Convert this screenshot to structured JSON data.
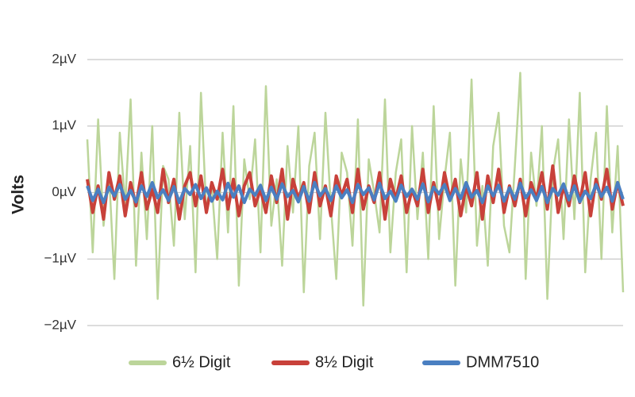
{
  "chart_data": {
    "type": "line",
    "y_label": "Volts",
    "ylim": [
      -2,
      2
    ],
    "yticks": [
      {
        "value": 2,
        "label": "2µV"
      },
      {
        "value": 1,
        "label": "1µV"
      },
      {
        "value": 0,
        "label": "0µV"
      },
      {
        "value": -1,
        "label": "−1µV"
      },
      {
        "value": -2,
        "label": "−2µV"
      }
    ],
    "grid": true,
    "legend": "bottom",
    "series": [
      {
        "name": "6½ Digit",
        "color": "#bcd59a",
        "values": [
          0.8,
          -0.9,
          1.1,
          -0.5,
          0.3,
          -1.3,
          0.9,
          -0.2,
          1.4,
          -1.1,
          0.6,
          -0.7,
          1.0,
          -1.6,
          0.4,
          0.2,
          -0.8,
          1.2,
          -0.4,
          0.7,
          -1.2,
          1.5,
          -0.3,
          0.1,
          -1.0,
          0.9,
          -0.6,
          1.3,
          -1.4,
          0.5,
          -0.1,
          0.8,
          -0.9,
          1.6,
          -0.5,
          0.2,
          -1.1,
          0.7,
          -0.3,
          1.0,
          -1.5,
          0.4,
          0.9,
          -0.7,
          1.2,
          -0.2,
          -1.3,
          0.6,
          0.3,
          -0.8,
          1.1,
          -1.7,
          0.5,
          0.0,
          -0.6,
          1.4,
          -0.9,
          0.3,
          0.8,
          -1.2,
          1.0,
          -0.4,
          0.6,
          -1.0,
          1.3,
          -0.7,
          0.2,
          0.9,
          -1.4,
          0.5,
          -0.3,
          1.7,
          -0.8,
          0.1,
          -1.1,
          0.7,
          1.2,
          -0.5,
          -0.9,
          0.4,
          1.8,
          -1.3,
          0.6,
          -0.2,
          1.0,
          -1.6,
          0.3,
          0.8,
          -0.7,
          1.1,
          -0.4,
          1.5,
          -1.2,
          0.2,
          0.9,
          -1.0,
          1.3,
          -0.6,
          0.7,
          -1.5
        ]
      },
      {
        "name": "8½ Digit",
        "color": "#c8413a",
        "values": [
          0.2,
          -0.3,
          0.1,
          -0.4,
          0.3,
          -0.1,
          0.25,
          -0.35,
          0.15,
          -0.2,
          0.3,
          -0.25,
          0.05,
          -0.3,
          0.35,
          -0.15,
          0.2,
          -0.4,
          0.1,
          0.3,
          -0.2,
          0.25,
          -0.3,
          0.15,
          -0.1,
          0.35,
          -0.25,
          0.2,
          -0.35,
          0.1,
          0.3,
          -0.2,
          0.05,
          -0.3,
          0.25,
          -0.15,
          0.35,
          -0.4,
          0.2,
          -0.1,
          0.15,
          -0.3,
          0.3,
          -0.2,
          0.1,
          -0.35,
          0.25,
          -0.05,
          0.2,
          -0.3,
          0.35,
          -0.25,
          0.1,
          -0.15,
          0.3,
          -0.4,
          0.2,
          -0.1,
          0.25,
          -0.3,
          0.05,
          -0.2,
          0.35,
          -0.3,
          0.15,
          -0.25,
          0.3,
          -0.1,
          0.2,
          -0.35,
          0.1,
          -0.2,
          0.3,
          -0.4,
          0.25,
          -0.15,
          0.35,
          -0.3,
          0.1,
          -0.2,
          0.2,
          -0.35,
          0.15,
          -0.1,
          0.3,
          -0.25,
          0.4,
          -0.3,
          0.1,
          -0.2,
          0.25,
          -0.15,
          0.3,
          -0.35,
          0.2,
          -0.1,
          0.35,
          -0.25,
          0.15,
          -0.2
        ]
      },
      {
        "name": "DMM7510",
        "color": "#4a7fc1",
        "values": [
          0.1,
          -0.12,
          0.05,
          -0.15,
          0.08,
          -0.05,
          0.12,
          -0.1,
          0.03,
          -0.14,
          0.1,
          -0.06,
          0.15,
          -0.08,
          0.04,
          -0.12,
          0.09,
          -0.15,
          0.06,
          -0.03,
          0.12,
          -0.09,
          0.07,
          -0.13,
          0.02,
          -0.11,
          0.14,
          -0.07,
          0.1,
          -0.15,
          0.05,
          -0.04,
          0.11,
          -0.12,
          0.08,
          -0.1,
          0.13,
          -0.06,
          0.03,
          -0.14,
          0.09,
          -0.13,
          0.15,
          -0.05,
          0.06,
          -0.12,
          0.1,
          -0.08,
          0.04,
          -0.15,
          0.12,
          -0.03,
          0.07,
          -0.11,
          0.14,
          -0.09,
          0.02,
          -0.13,
          0.11,
          -0.06,
          0.05,
          -0.1,
          0.13,
          -0.14,
          0.08,
          -0.02,
          0.12,
          -0.12,
          0.06,
          -0.09,
          0.15,
          -0.07,
          0.03,
          -0.15,
          0.1,
          -0.05,
          0.11,
          -0.13,
          0.07,
          -0.1,
          0.14,
          -0.08,
          0.04,
          -0.12,
          0.09,
          -0.15,
          0.06,
          -0.04,
          0.13,
          -0.11,
          0.1,
          -0.14,
          0.02,
          -0.09,
          0.12,
          -0.06,
          0.08,
          -0.13,
          0.15,
          -0.1
        ]
      }
    ]
  }
}
